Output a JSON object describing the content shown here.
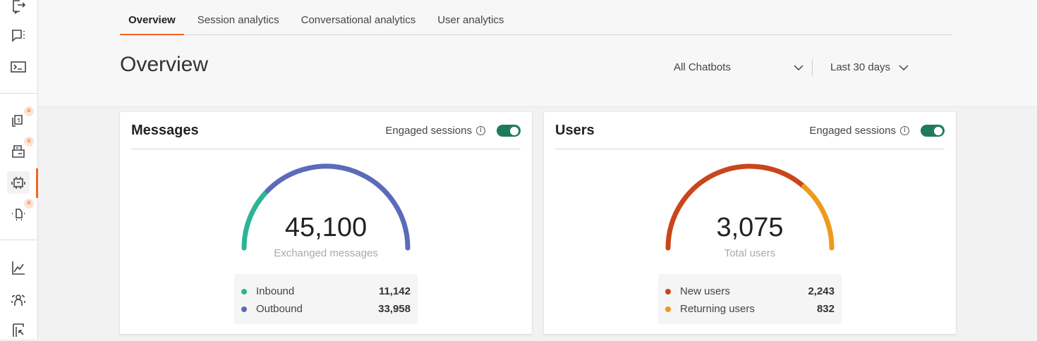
{
  "sidebar": {
    "icons": [
      "export-icon",
      "chat-options-icon",
      "terminal-icon",
      "conversations-icon",
      "inbox-icon",
      "chatbot-icon",
      "flow-icon",
      "analytics-icon",
      "people-icon",
      "reports-icon"
    ],
    "badge": "≡",
    "active": "chatbot-icon"
  },
  "tabs": [
    {
      "label": "Overview",
      "active": true
    },
    {
      "label": "Session analytics"
    },
    {
      "label": "Conversational analytics"
    },
    {
      "label": "User analytics"
    }
  ],
  "page_title": "Overview",
  "filters": {
    "chatbot": "All Chatbots",
    "period": "Last 30 days"
  },
  "toggle_on_color": "#1f7a5c",
  "cards": [
    {
      "title": "Messages",
      "toggle_label": "Engaged sessions",
      "toggle_on": true,
      "total": "45,100",
      "total_label": "Exchanged messages",
      "items": [
        {
          "label": "Inbound",
          "value": "11,142",
          "color": "#2bb596"
        },
        {
          "label": "Outbound",
          "value": "33,958",
          "color": "#5b6bb8"
        }
      ]
    },
    {
      "title": "Users",
      "toggle_label": "Engaged sessions",
      "toggle_on": true,
      "total": "3,075",
      "total_label": "Total users",
      "items": [
        {
          "label": "New users",
          "value": "2,243",
          "color": "#c9451c"
        },
        {
          "label": "Returning users",
          "value": "832",
          "color": "#ee9a1d"
        }
      ]
    }
  ]
}
